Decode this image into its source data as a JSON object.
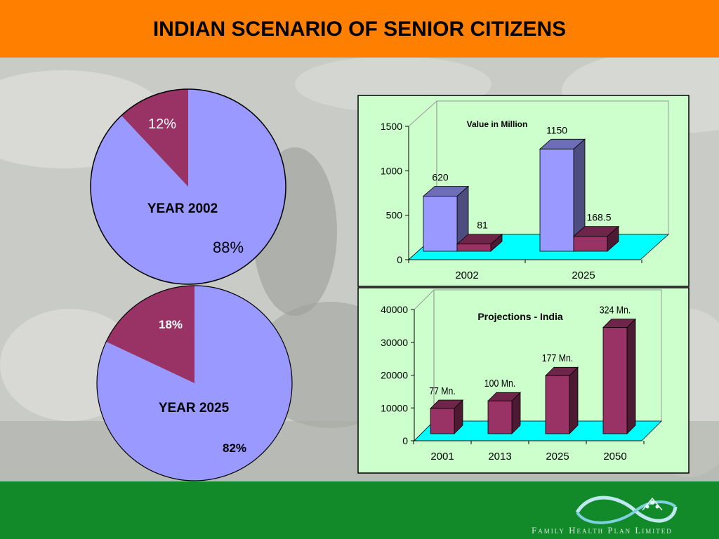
{
  "title": "INDIAN SCENARIO OF SENIOR CITIZENS",
  "colors": {
    "header": "#ff8000",
    "footer": "#128a2a",
    "periwinkle": "#9999ff",
    "plum": "#993366",
    "panel": "#ccffcc",
    "floor": "#00ffff"
  },
  "footer": {
    "brand_text": "Family Health Plan Limited"
  },
  "chart_data": [
    {
      "type": "pie",
      "label": "YEAR 2002",
      "slices": [
        {
          "value": 12,
          "label": "12%",
          "color": "#993366"
        },
        {
          "value": 88,
          "label": "88%",
          "color": "#9999ff"
        }
      ]
    },
    {
      "type": "pie",
      "label": "YEAR 2025",
      "slices": [
        {
          "value": 18,
          "label": "18%",
          "color": "#993366"
        },
        {
          "value": 82,
          "label": "82%",
          "color": "#9999ff"
        }
      ]
    },
    {
      "type": "bar",
      "title": "Value in Million",
      "categories": [
        "2002",
        "2025"
      ],
      "series": [
        {
          "values": [
            620,
            1150
          ],
          "data_labels": [
            "620",
            "1150"
          ],
          "color": "#9999ff"
        },
        {
          "values": [
            81,
            168.5
          ],
          "data_labels": [
            "81",
            "168.5"
          ],
          "color": "#993366"
        }
      ],
      "yticks": [
        "0",
        "500",
        "1000",
        "1500"
      ],
      "ylim": [
        0,
        1500
      ],
      "grid": false
    },
    {
      "type": "bar",
      "title": "Projections - India",
      "categories": [
        "2001",
        "2013",
        "2025",
        "2050"
      ],
      "series": [
        {
          "values": [
            7700,
            10000,
            17700,
            32400
          ],
          "data_labels": [
            "77 Mn.",
            "100 Mn.",
            "177 Mn.",
            "324 Mn."
          ],
          "color": "#993366"
        }
      ],
      "yticks": [
        "0",
        "10000",
        "20000",
        "30000",
        "40000"
      ],
      "ylim": [
        0,
        40000
      ],
      "grid": false
    }
  ]
}
